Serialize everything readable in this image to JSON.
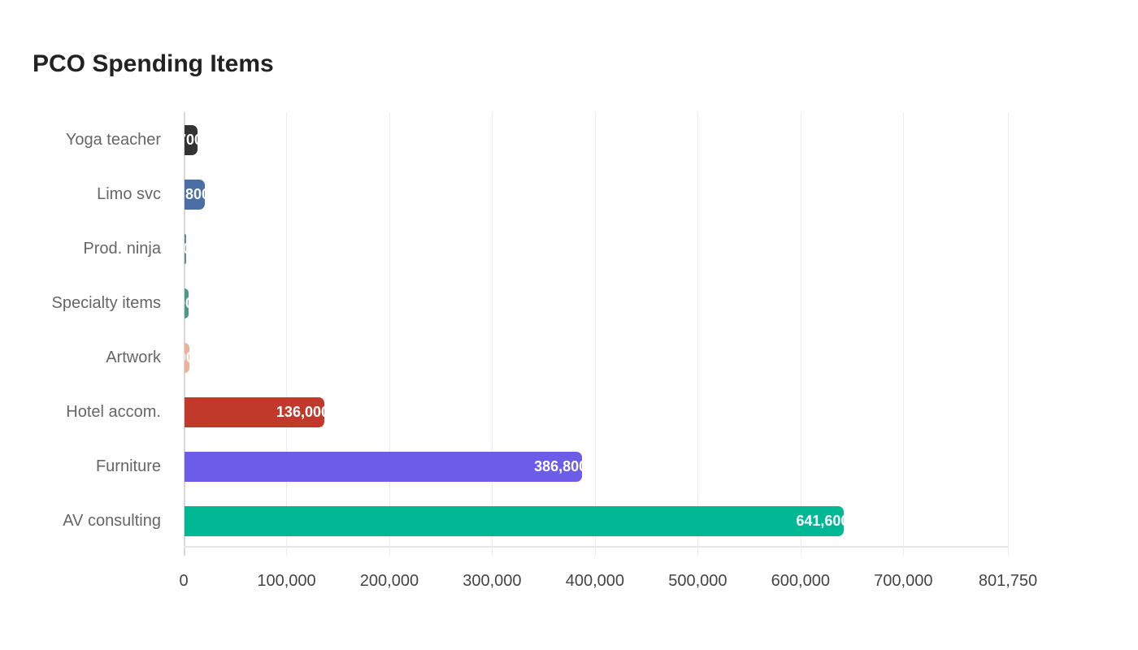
{
  "title": "PCO Spending Items",
  "chart_data": {
    "type": "bar",
    "orientation": "horizontal",
    "title": "PCO Spending Items",
    "xlabel": "",
    "ylabel": "",
    "xlim": [
      0,
      801750
    ],
    "grid": true,
    "legend": "none",
    "x_ticks": [
      "0",
      "100,000",
      "200,000",
      "300,000",
      "400,000",
      "500,000",
      "600,000",
      "700,000",
      "801,750"
    ],
    "x_tick_values": [
      0,
      100000,
      200000,
      300000,
      400000,
      500000,
      600000,
      700000,
      801750
    ],
    "categories": [
      "Yoga teacher",
      "Limo svc",
      "Prod. ninja",
      "Specialty items",
      "Artwork",
      "Hotel accom.",
      "Furniture",
      "AV consulting"
    ],
    "values": [
      12700,
      19800,
      1200,
      4000,
      4700,
      136000,
      386800,
      641600
    ],
    "colors": [
      "#333333",
      "#4a6fa5",
      "#5a8f8a",
      "#4e9a86",
      "#e8b39a",
      "#c0392b",
      "#6c5ce7",
      "#00b894"
    ]
  }
}
